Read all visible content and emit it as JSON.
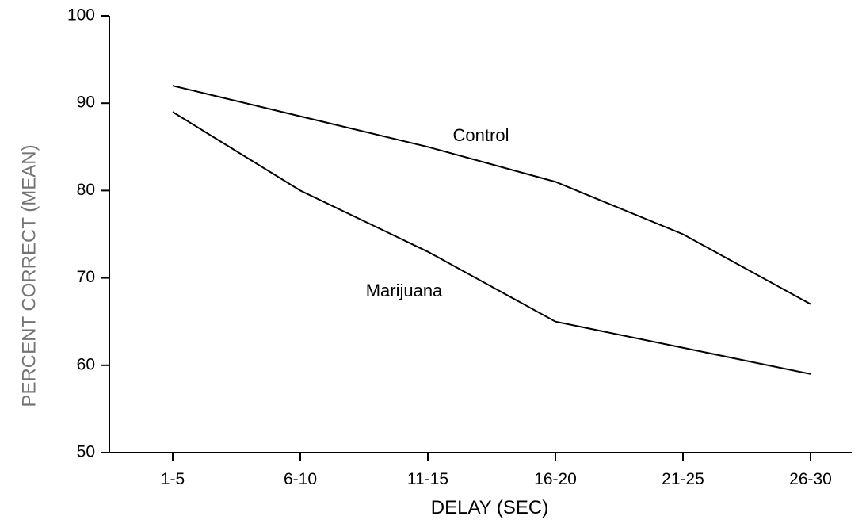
{
  "chart_data": {
    "type": "line",
    "title": "",
    "xlabel": "DELAY (SEC)",
    "ylabel": "PERCENT CORRECT (MEAN)",
    "categories": [
      "1-5",
      "6-10",
      "11-15",
      "16-20",
      "21-25",
      "26-30"
    ],
    "ylim": [
      50,
      100
    ],
    "yticks": [
      50,
      60,
      70,
      80,
      90,
      100
    ],
    "grid": false,
    "legend": "none",
    "series": [
      {
        "name": "Control",
        "values": [
          92,
          88.5,
          85,
          81,
          75,
          67
        ]
      },
      {
        "name": "Marijuana",
        "values": [
          89,
          80,
          73,
          65,
          62,
          59
        ]
      }
    ]
  }
}
